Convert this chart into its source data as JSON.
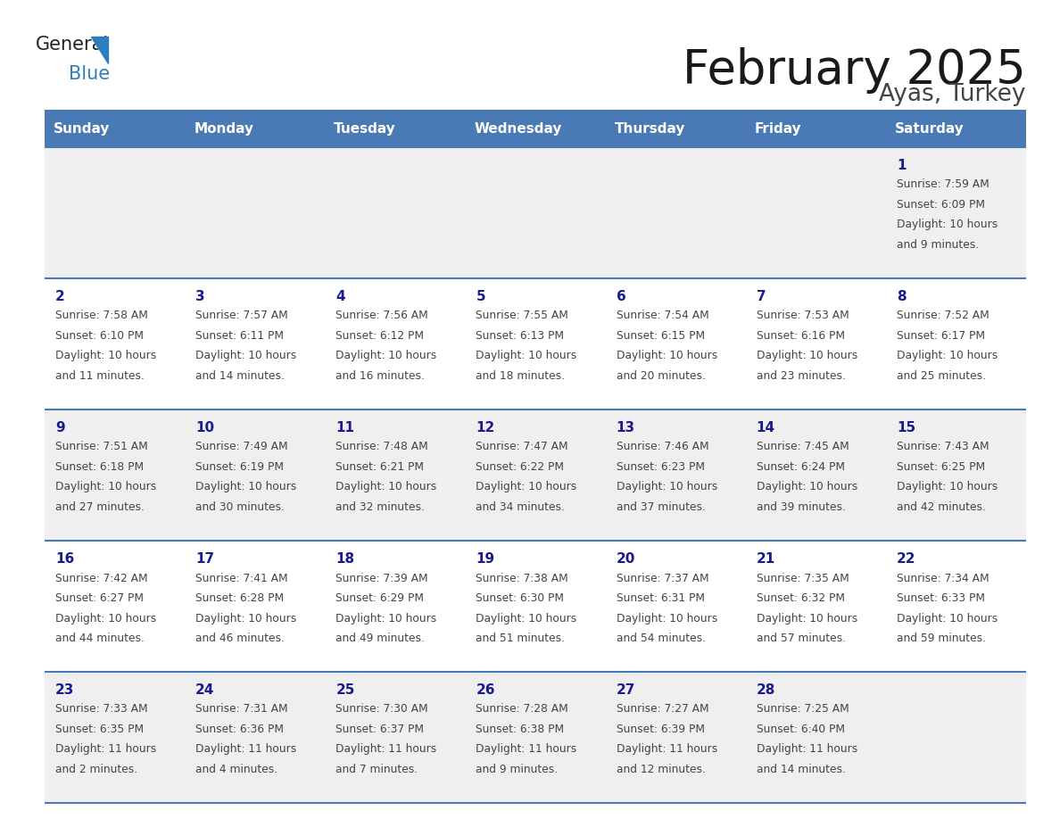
{
  "title": "February 2025",
  "subtitle": "Ayas, Turkey",
  "days_of_week": [
    "Sunday",
    "Monday",
    "Tuesday",
    "Wednesday",
    "Thursday",
    "Friday",
    "Saturday"
  ],
  "header_bg": "#4a7ab5",
  "header_text": "#ffffff",
  "row_bg_odd": "#efefef",
  "row_bg_even": "#ffffff",
  "day_number_color": "#1a1a8c",
  "text_color": "#444444",
  "separator_color": "#4a7ab5",
  "title_color": "#1a1a1a",
  "subtitle_color": "#444444",
  "calendar": [
    [
      null,
      null,
      null,
      null,
      null,
      null,
      {
        "day": "1",
        "sunrise": "7:59 AM",
        "sunset": "6:09 PM",
        "daylight": "10 hours and 9 minutes."
      }
    ],
    [
      {
        "day": "2",
        "sunrise": "7:58 AM",
        "sunset": "6:10 PM",
        "daylight": "10 hours and 11 minutes."
      },
      {
        "day": "3",
        "sunrise": "7:57 AM",
        "sunset": "6:11 PM",
        "daylight": "10 hours and 14 minutes."
      },
      {
        "day": "4",
        "sunrise": "7:56 AM",
        "sunset": "6:12 PM",
        "daylight": "10 hours and 16 minutes."
      },
      {
        "day": "5",
        "sunrise": "7:55 AM",
        "sunset": "6:13 PM",
        "daylight": "10 hours and 18 minutes."
      },
      {
        "day": "6",
        "sunrise": "7:54 AM",
        "sunset": "6:15 PM",
        "daylight": "10 hours and 20 minutes."
      },
      {
        "day": "7",
        "sunrise": "7:53 AM",
        "sunset": "6:16 PM",
        "daylight": "10 hours and 23 minutes."
      },
      {
        "day": "8",
        "sunrise": "7:52 AM",
        "sunset": "6:17 PM",
        "daylight": "10 hours and 25 minutes."
      }
    ],
    [
      {
        "day": "9",
        "sunrise": "7:51 AM",
        "sunset": "6:18 PM",
        "daylight": "10 hours and 27 minutes."
      },
      {
        "day": "10",
        "sunrise": "7:49 AM",
        "sunset": "6:19 PM",
        "daylight": "10 hours and 30 minutes."
      },
      {
        "day": "11",
        "sunrise": "7:48 AM",
        "sunset": "6:21 PM",
        "daylight": "10 hours and 32 minutes."
      },
      {
        "day": "12",
        "sunrise": "7:47 AM",
        "sunset": "6:22 PM",
        "daylight": "10 hours and 34 minutes."
      },
      {
        "day": "13",
        "sunrise": "7:46 AM",
        "sunset": "6:23 PM",
        "daylight": "10 hours and 37 minutes."
      },
      {
        "day": "14",
        "sunrise": "7:45 AM",
        "sunset": "6:24 PM",
        "daylight": "10 hours and 39 minutes."
      },
      {
        "day": "15",
        "sunrise": "7:43 AM",
        "sunset": "6:25 PM",
        "daylight": "10 hours and 42 minutes."
      }
    ],
    [
      {
        "day": "16",
        "sunrise": "7:42 AM",
        "sunset": "6:27 PM",
        "daylight": "10 hours and 44 minutes."
      },
      {
        "day": "17",
        "sunrise": "7:41 AM",
        "sunset": "6:28 PM",
        "daylight": "10 hours and 46 minutes."
      },
      {
        "day": "18",
        "sunrise": "7:39 AM",
        "sunset": "6:29 PM",
        "daylight": "10 hours and 49 minutes."
      },
      {
        "day": "19",
        "sunrise": "7:38 AM",
        "sunset": "6:30 PM",
        "daylight": "10 hours and 51 minutes."
      },
      {
        "day": "20",
        "sunrise": "7:37 AM",
        "sunset": "6:31 PM",
        "daylight": "10 hours and 54 minutes."
      },
      {
        "day": "21",
        "sunrise": "7:35 AM",
        "sunset": "6:32 PM",
        "daylight": "10 hours and 57 minutes."
      },
      {
        "day": "22",
        "sunrise": "7:34 AM",
        "sunset": "6:33 PM",
        "daylight": "10 hours and 59 minutes."
      }
    ],
    [
      {
        "day": "23",
        "sunrise": "7:33 AM",
        "sunset": "6:35 PM",
        "daylight": "11 hours and 2 minutes."
      },
      {
        "day": "24",
        "sunrise": "7:31 AM",
        "sunset": "6:36 PM",
        "daylight": "11 hours and 4 minutes."
      },
      {
        "day": "25",
        "sunrise": "7:30 AM",
        "sunset": "6:37 PM",
        "daylight": "11 hours and 7 minutes."
      },
      {
        "day": "26",
        "sunrise": "7:28 AM",
        "sunset": "6:38 PM",
        "daylight": "11 hours and 9 minutes."
      },
      {
        "day": "27",
        "sunrise": "7:27 AM",
        "sunset": "6:39 PM",
        "daylight": "11 hours and 12 minutes."
      },
      {
        "day": "28",
        "sunrise": "7:25 AM",
        "sunset": "6:40 PM",
        "daylight": "11 hours and 14 minutes."
      },
      null
    ]
  ]
}
